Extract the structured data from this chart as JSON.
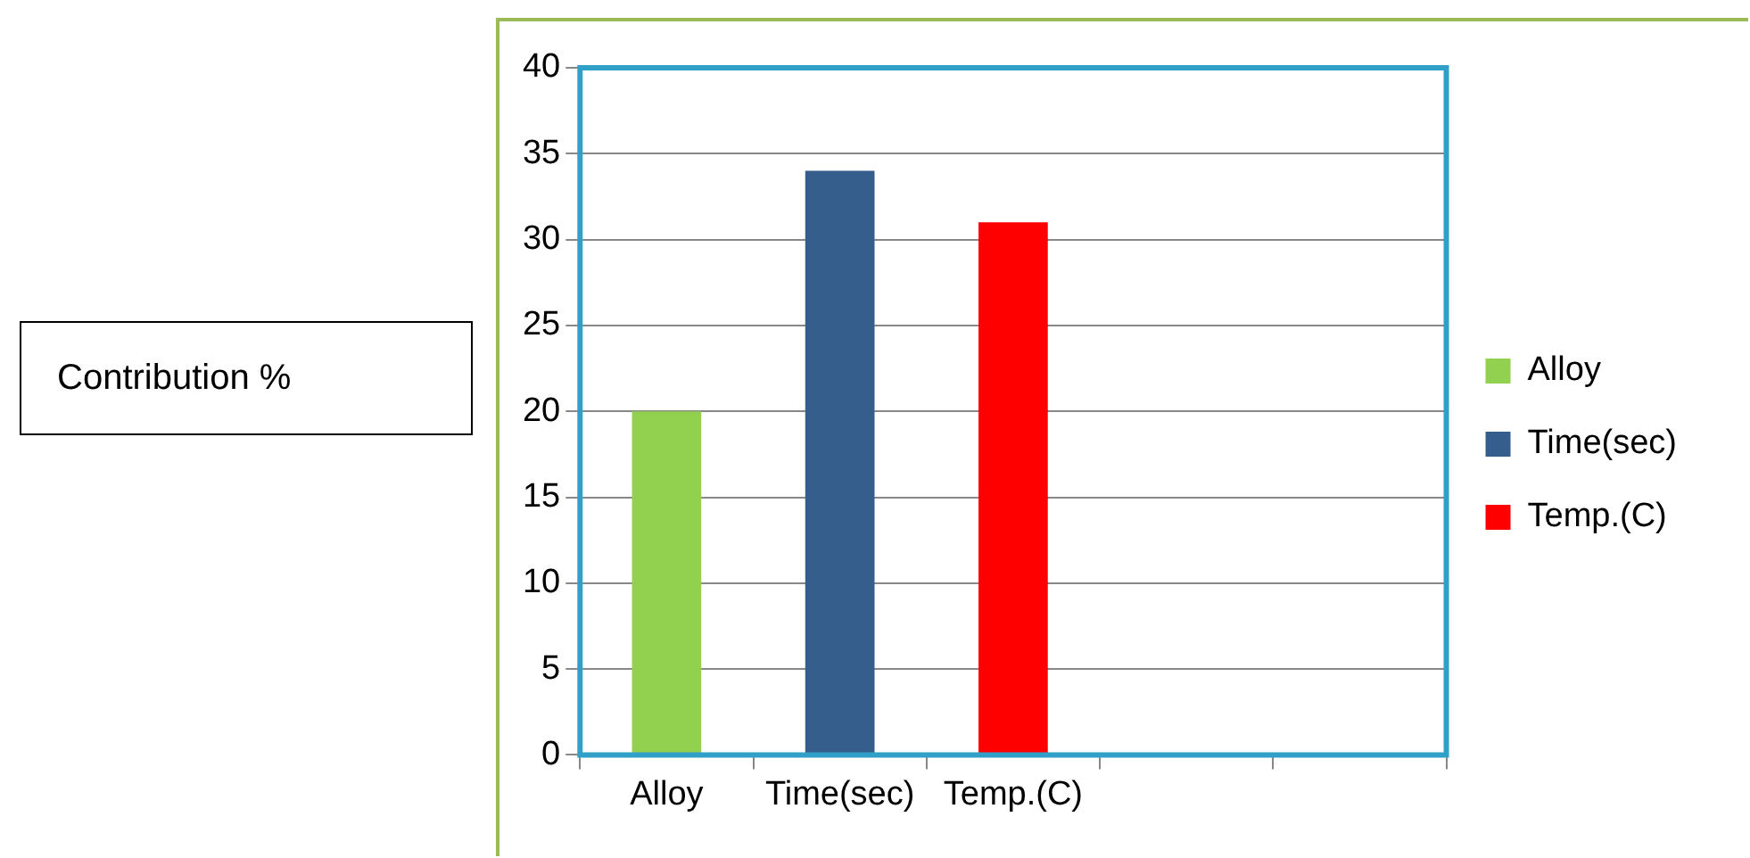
{
  "chart_data": {
    "type": "bar",
    "annotations": [
      "Contribution %"
    ],
    "categories": [
      "Alloy",
      "Time(sec)",
      "Temp.(C)",
      null,
      null
    ],
    "series": [
      {
        "name": "Alloy",
        "color": "#92d050",
        "values": [
          20,
          null,
          null,
          null,
          null
        ]
      },
      {
        "name": "Time(sec)",
        "color": "#355e8d",
        "values": [
          null,
          34,
          null,
          null,
          null
        ]
      },
      {
        "name": "Temp.(C)",
        "color": "#ff0000",
        "values": [
          null,
          null,
          31,
          null,
          null
        ]
      }
    ],
    "ylim": [
      0,
      40
    ],
    "yticks": [
      0,
      5,
      10,
      15,
      20,
      25,
      30,
      35,
      40
    ],
    "grid": "y",
    "legend": "right"
  }
}
